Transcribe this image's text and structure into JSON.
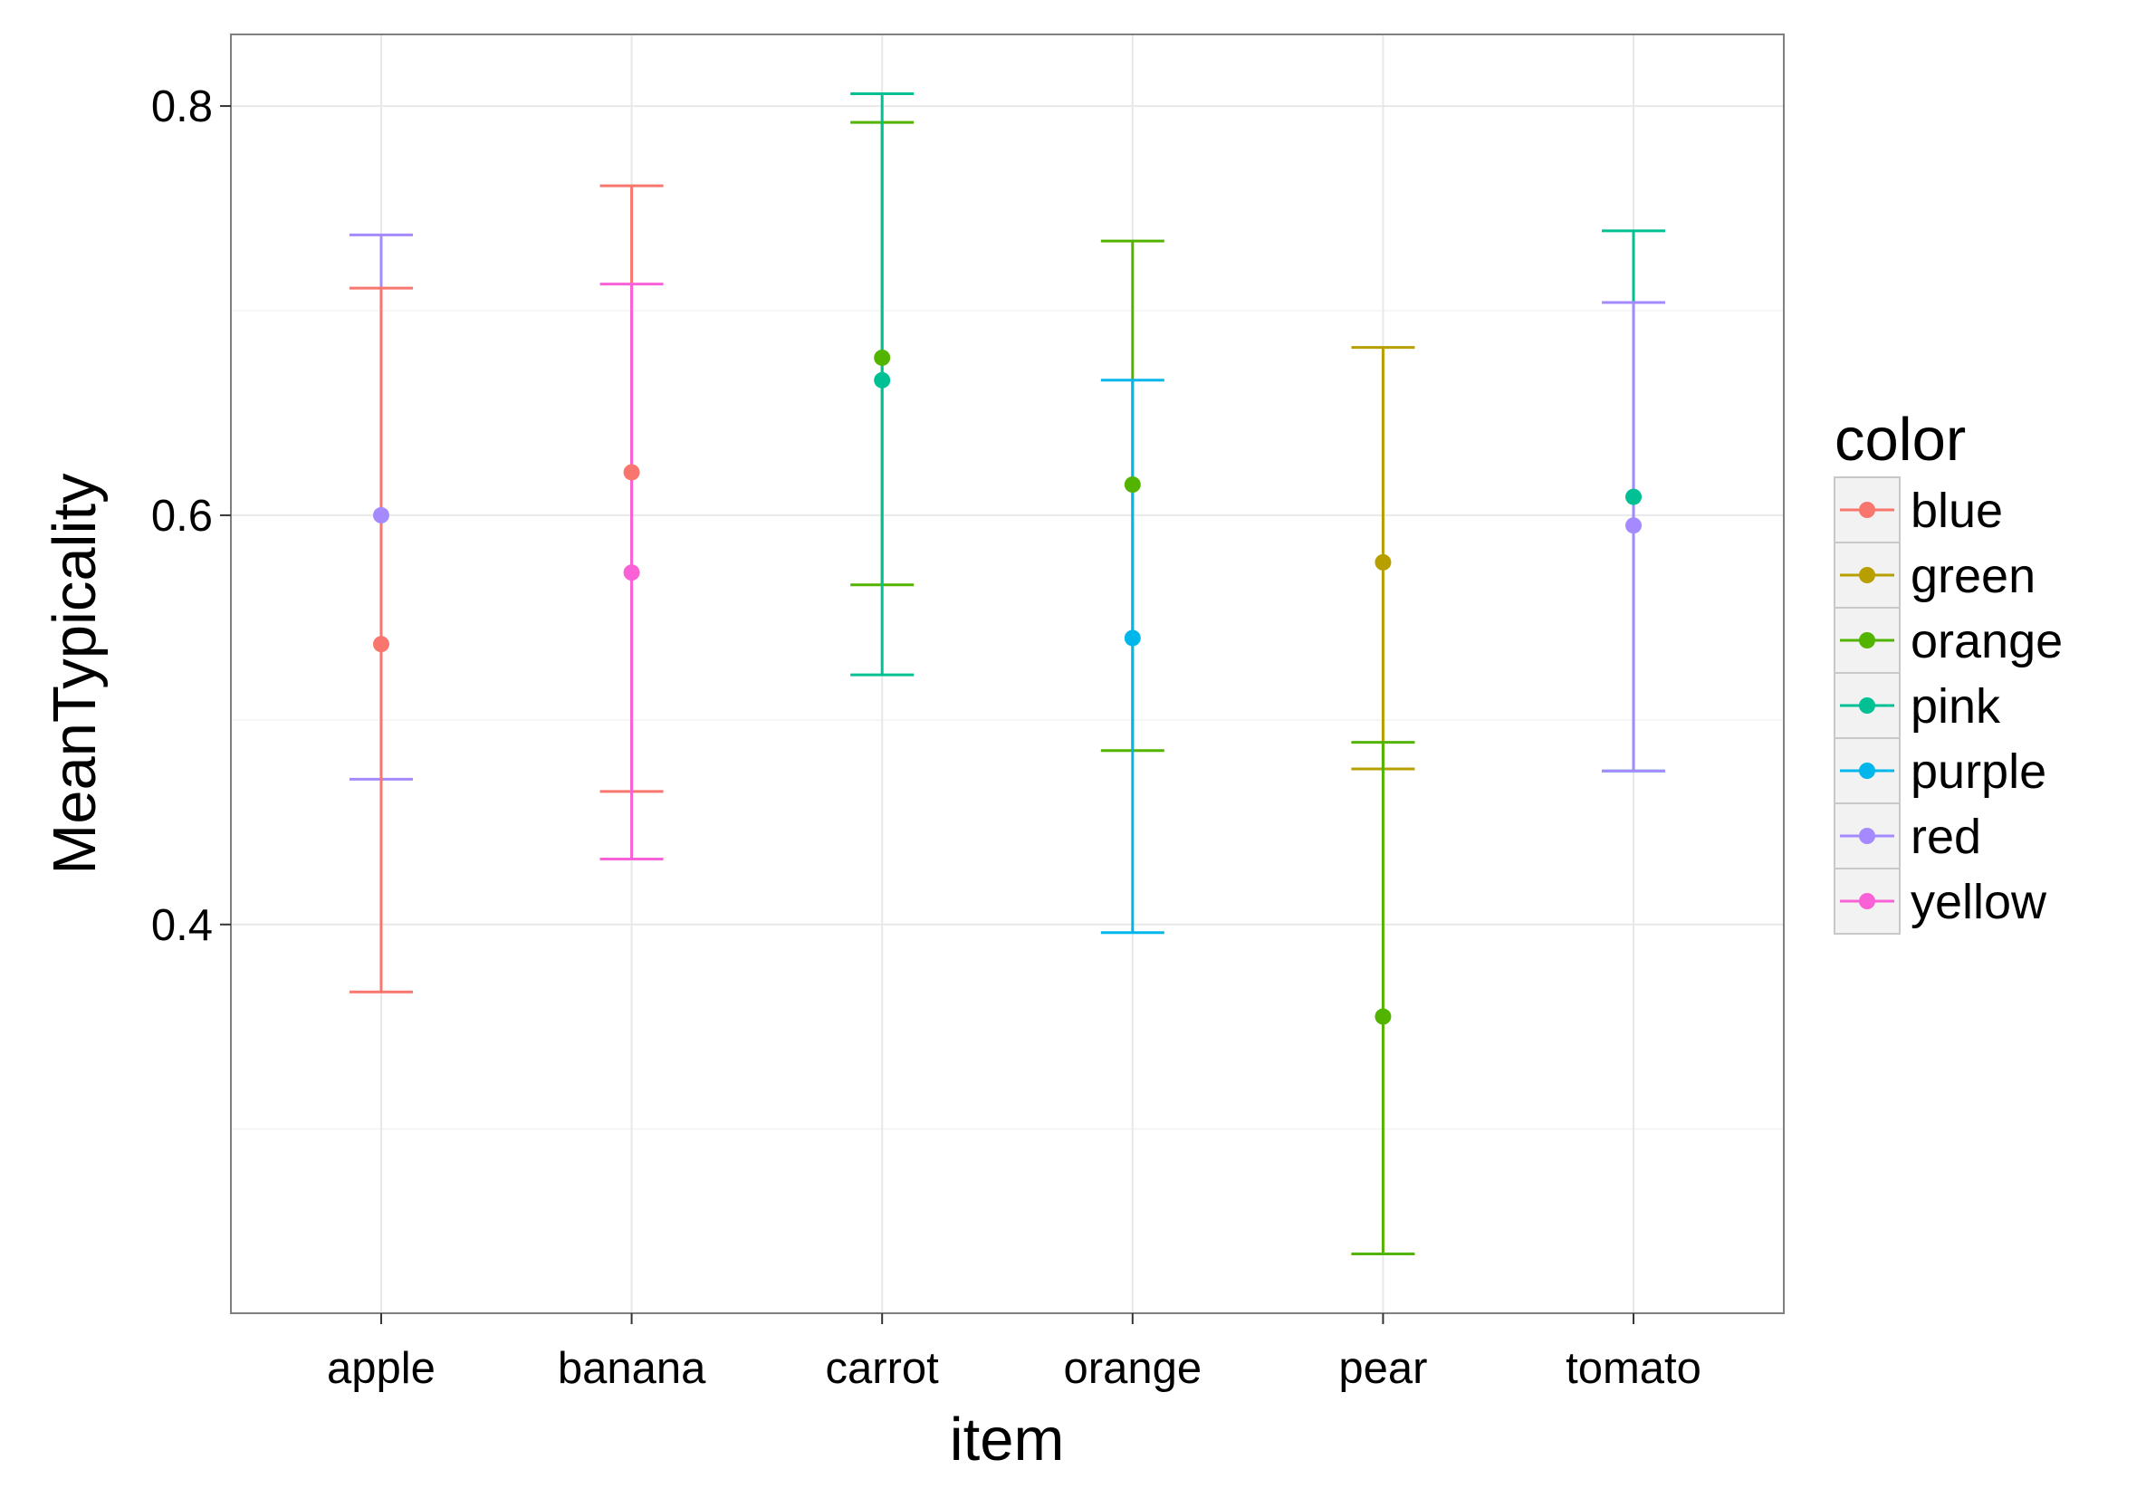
{
  "chart_data": {
    "type": "errorbar",
    "xlabel": "item",
    "ylabel": "MeanTypicality",
    "categories": [
      "apple",
      "banana",
      "carrot",
      "orange",
      "pear",
      "tomato"
    ],
    "ylim": [
      0.21,
      0.835
    ],
    "yticks": [
      0.4,
      0.6,
      0.8
    ],
    "ytick_labels": [
      "0.4",
      "0.6",
      "0.8"
    ],
    "grid": true,
    "legend": {
      "title": "color",
      "placement": "right",
      "entries": [
        "blue",
        "green",
        "orange",
        "pink",
        "purple",
        "red",
        "yellow"
      ]
    },
    "colors": {
      "blue": "#F8766D",
      "green": "#B79F00",
      "orange": "#53B400",
      "pink": "#00C094",
      "purple": "#00B6EB",
      "red": "#A58AFF",
      "yellow": "#FB61D7"
    },
    "points": [
      {
        "item": "apple",
        "color": "red",
        "mean": 0.6,
        "low": 0.471,
        "high": 0.737
      },
      {
        "item": "apple",
        "color": "blue",
        "mean": 0.537,
        "low": 0.367,
        "high": 0.711
      },
      {
        "item": "banana",
        "color": "blue",
        "mean": 0.621,
        "low": 0.465,
        "high": 0.761
      },
      {
        "item": "banana",
        "color": "yellow",
        "mean": 0.572,
        "low": 0.432,
        "high": 0.713
      },
      {
        "item": "carrot",
        "color": "orange",
        "mean": 0.677,
        "low": 0.566,
        "high": 0.792
      },
      {
        "item": "carrot",
        "color": "pink",
        "mean": 0.666,
        "low": 0.522,
        "high": 0.806
      },
      {
        "item": "orange",
        "color": "orange",
        "mean": 0.615,
        "low": 0.485,
        "high": 0.734
      },
      {
        "item": "orange",
        "color": "purple",
        "mean": 0.54,
        "low": 0.396,
        "high": 0.666
      },
      {
        "item": "pear",
        "color": "green",
        "mean": 0.577,
        "low": 0.476,
        "high": 0.682
      },
      {
        "item": "pear",
        "color": "orange",
        "mean": 0.355,
        "low": 0.239,
        "high": 0.489
      },
      {
        "item": "tomato",
        "color": "pink",
        "mean": 0.609,
        "low": 0.475,
        "high": 0.739
      },
      {
        "item": "tomato",
        "color": "red",
        "mean": 0.595,
        "low": 0.475,
        "high": 0.704
      }
    ]
  }
}
